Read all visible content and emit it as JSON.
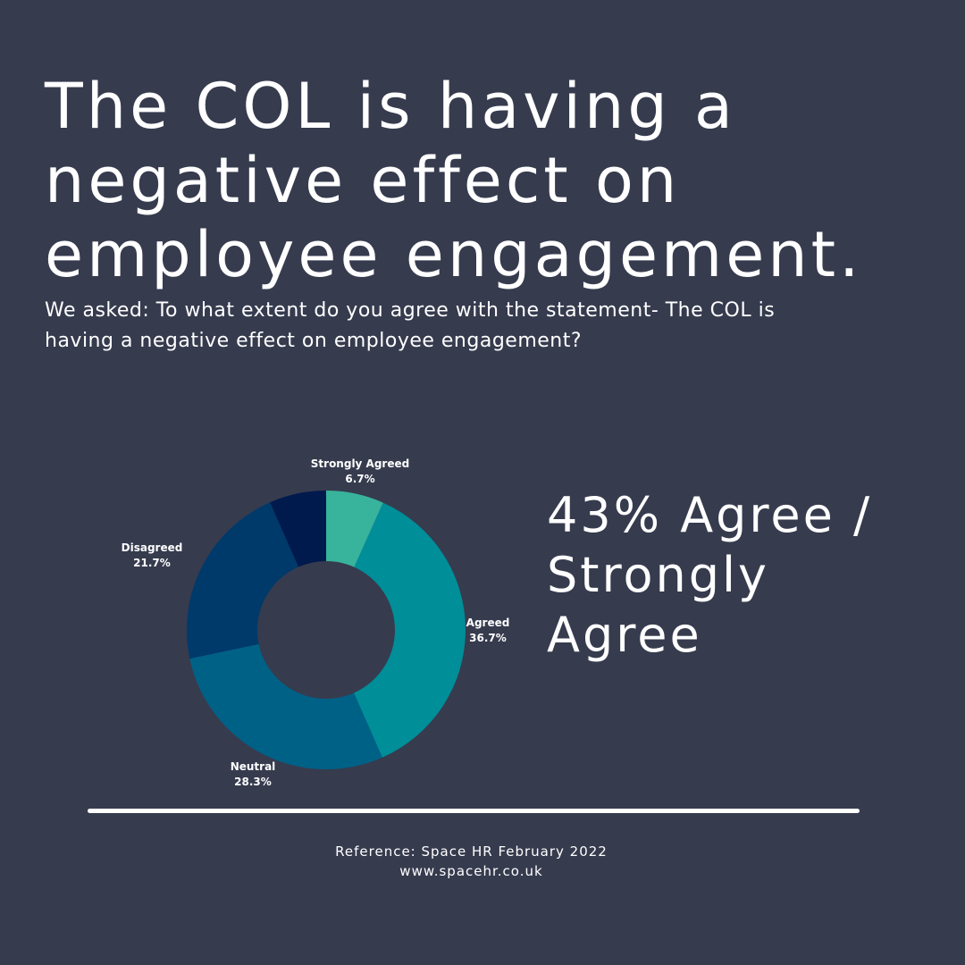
{
  "title": {
    "lines": [
      "The COL is having a",
      "negative effect on",
      "employee engagement."
    ]
  },
  "subtitle": {
    "lines": [
      "We asked: To what extent do you agree with the statement- The COL is",
      "having a negative effect on employee engagement?"
    ]
  },
  "headline": {
    "lines": [
      "43% Agree /",
      "Strongly",
      "Agree"
    ]
  },
  "footer": {
    "reference": "Reference: Space HR February 2022",
    "website": "www.spacehr.co.uk"
  },
  "chart_data": {
    "type": "pie",
    "variant": "donut",
    "title": "",
    "slices": [
      {
        "label": "Strongly Agreed",
        "value": 6.7,
        "value_label": "6.7%",
        "color": "#38b39c"
      },
      {
        "label": "Agreed",
        "value": 36.7,
        "value_label": "36.7%",
        "color": "#008e99"
      },
      {
        "label": "Neutral",
        "value": 28.3,
        "value_label": "28.3%",
        "color": "#006187"
      },
      {
        "label": "Disagreed",
        "value": 21.7,
        "value_label": "21.7%",
        "color": "#003a6b"
      },
      {
        "label": "",
        "value": 6.6,
        "value_label": "",
        "color": "#001a4d"
      }
    ],
    "start_angle": "12 o'clock",
    "direction": "clockwise"
  },
  "colors": {
    "background": "#363b4e",
    "text": "#ffffff"
  }
}
